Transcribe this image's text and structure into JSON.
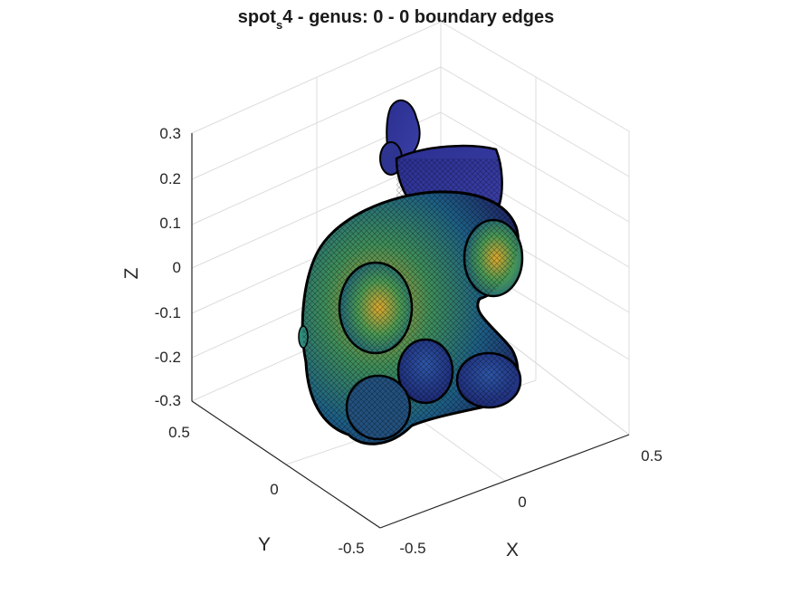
{
  "title": {
    "prefix": "spot",
    "subscript": "s",
    "suffix": "4 - genus: 0 - 0 boundary edges"
  },
  "axes": {
    "x": {
      "label": "X",
      "ticks": [
        "-0.5",
        "0",
        "0.5"
      ]
    },
    "y": {
      "label": "Y",
      "ticks": [
        "0.5",
        "0",
        "-0.5"
      ]
    },
    "z": {
      "label": "Z",
      "ticks": [
        "0.3",
        "0.2",
        "0.1",
        "0",
        "-0.1",
        "-0.2",
        "-0.3"
      ]
    }
  },
  "plot": {
    "type": "3d-mesh",
    "grid": true,
    "colormap": "parula"
  },
  "colors": {
    "wire": "#000000",
    "low": "#2a2f8a",
    "mid": "#1f7f7a",
    "high": "#d6b22e",
    "grid": "#d9d9d9",
    "axis": "#262626"
  }
}
